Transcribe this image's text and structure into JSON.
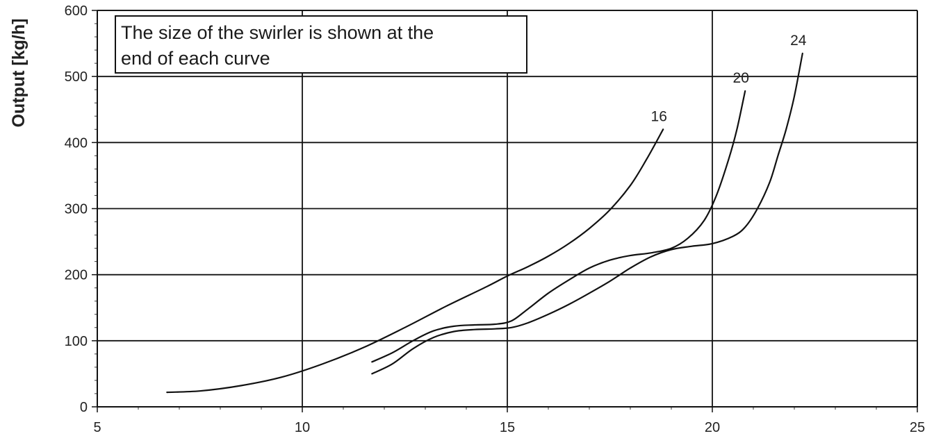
{
  "chart_data": {
    "type": "line",
    "title": "",
    "xlabel": "",
    "ylabel": "Output [kg/h]",
    "xlim": [
      5,
      25
    ],
    "ylim": [
      0,
      600
    ],
    "x_ticks": [
      5,
      10,
      15,
      20,
      25
    ],
    "y_ticks": [
      0,
      100,
      200,
      300,
      400,
      500,
      600
    ],
    "x_tick_labels": [
      "5",
      "10",
      "15",
      "20",
      "25"
    ],
    "y_tick_labels": [
      "0",
      "100",
      "200",
      "300",
      "400",
      "500",
      "600"
    ],
    "grid": true,
    "legend": "none",
    "annotation": {
      "lines": [
        "The size of the swirler is shown at the",
        "end of each curve"
      ]
    },
    "series": [
      {
        "name": "16",
        "x": [
          6.7,
          7.5,
          8.5,
          9.5,
          10.5,
          11.5,
          12.5,
          13.5,
          14.5,
          15.0,
          15.5,
          16.0,
          16.5,
          17.0,
          17.5,
          18.0,
          18.4,
          18.8
        ],
        "y": [
          22,
          24,
          32,
          45,
          65,
          90,
          120,
          152,
          182,
          198,
          212,
          228,
          247,
          270,
          298,
          335,
          375,
          420
        ]
      },
      {
        "name": "20",
        "x": [
          11.7,
          12.2,
          12.7,
          13.2,
          13.7,
          14.2,
          14.7,
          15.1,
          15.5,
          16.0,
          16.5,
          17.0,
          17.5,
          18.0,
          18.5,
          19.0,
          19.4,
          19.8,
          20.1,
          20.4,
          20.6,
          20.8
        ],
        "y": [
          68,
          82,
          100,
          115,
          122,
          124,
          125,
          130,
          148,
          172,
          192,
          210,
          222,
          229,
          233,
          240,
          255,
          282,
          320,
          375,
          420,
          478
        ]
      },
      {
        "name": "24",
        "x": [
          11.7,
          12.2,
          12.7,
          13.2,
          13.7,
          14.2,
          14.7,
          15.1,
          15.5,
          16.0,
          16.5,
          17.0,
          17.5,
          18.0,
          18.5,
          19.0,
          19.5,
          20.0,
          20.5,
          20.8,
          21.1,
          21.4,
          21.6,
          21.8,
          22.0,
          22.2
        ],
        "y": [
          50,
          65,
          88,
          105,
          114,
          117,
          118,
          120,
          127,
          140,
          155,
          172,
          190,
          210,
          227,
          238,
          243,
          247,
          258,
          272,
          300,
          340,
          380,
          420,
          470,
          535
        ]
      }
    ]
  }
}
